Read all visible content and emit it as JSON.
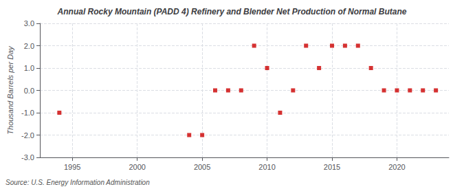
{
  "chart_data": {
    "type": "scatter",
    "title": "Annual Rocky Mountain (PADD 4) Refinery and Blender Net Production of Normal Butane",
    "ylabel": "Thousand Barrels per Day",
    "source": "Source: U.S. Energy Information Administration",
    "x": [
      1994,
      2004,
      2005,
      2006,
      2007,
      2008,
      2009,
      2010,
      2011,
      2012,
      2013,
      2014,
      2015,
      2016,
      2017,
      2018,
      2019,
      2020,
      2021,
      2022,
      2023
    ],
    "values": [
      -1,
      -2,
      -2,
      0,
      0,
      0,
      2,
      1,
      -1,
      0,
      2,
      1,
      2,
      2,
      2,
      1,
      0,
      0,
      0,
      0,
      0
    ],
    "color": "#cc0000",
    "marker": "square",
    "xlim": [
      1992.5,
      2024
    ],
    "xticks": [
      1995,
      2000,
      2005,
      2010,
      2015,
      2020
    ],
    "ylim": [
      -3.0,
      3.0
    ],
    "yticks": [
      {
        "value": -3,
        "label": "-3.0"
      },
      {
        "value": -2,
        "label": "-2.0"
      },
      {
        "value": -1,
        "label": "-1.0"
      },
      {
        "value": 0,
        "label": "0.0"
      },
      {
        "value": 1,
        "label": "1.0"
      },
      {
        "value": 2,
        "label": "2.0"
      },
      {
        "value": 3,
        "label": "3.0"
      }
    ],
    "grid": true
  }
}
